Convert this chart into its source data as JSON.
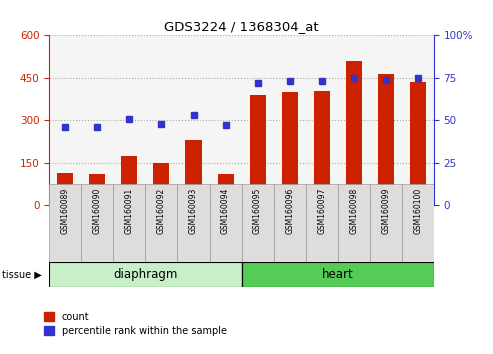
{
  "title": "GDS3224 / 1368304_at",
  "categories": [
    "GSM160089",
    "GSM160090",
    "GSM160091",
    "GSM160092",
    "GSM160093",
    "GSM160094",
    "GSM160095",
    "GSM160096",
    "GSM160097",
    "GSM160098",
    "GSM160099",
    "GSM160100"
  ],
  "count_values": [
    115,
    112,
    175,
    150,
    230,
    110,
    390,
    400,
    405,
    510,
    465,
    435
  ],
  "percentile_values": [
    46,
    46,
    51,
    48,
    53,
    47,
    72,
    73,
    73,
    75,
    74,
    75
  ],
  "count_color": "#cc2200",
  "percentile_color": "#3333cc",
  "ylim_left": [
    0,
    600
  ],
  "ylim_right": [
    0,
    100
  ],
  "yticks_left": [
    0,
    150,
    300,
    450,
    600
  ],
  "yticks_right": [
    0,
    25,
    50,
    75,
    100
  ],
  "tissue_groups": [
    {
      "label": "diaphragm",
      "start": 0,
      "end": 6,
      "color": "#c8f0c8"
    },
    {
      "label": "heart",
      "start": 6,
      "end": 12,
      "color": "#55cc55"
    }
  ],
  "tissue_label": "tissue",
  "legend_count": "count",
  "legend_percentile": "percentile rank within the sample",
  "background_color": "#ffffff",
  "plot_bg": "#f5f5f5"
}
